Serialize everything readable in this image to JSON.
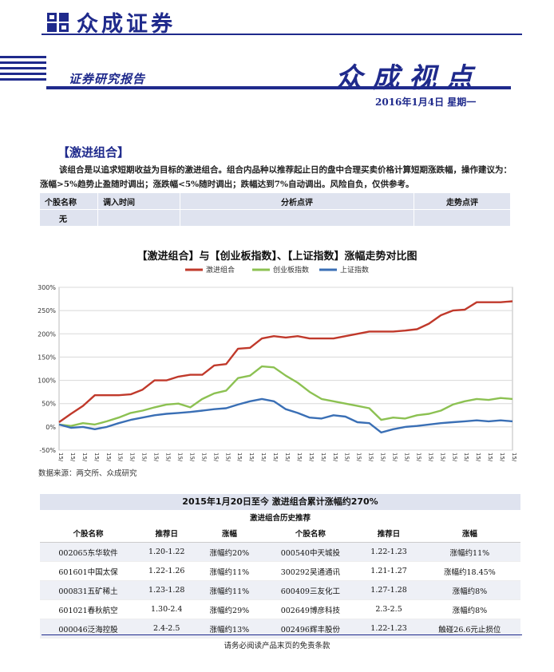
{
  "header": {
    "brand_name": "众成证券",
    "report_label": "证券研究报告",
    "title": "众成视点",
    "date": "2016年1月4日  星期一",
    "brand_color": "#1f2a8c"
  },
  "aggressive_portfolio": {
    "section_title": "【激进组合】",
    "description": "该组合是以追求短期收益为目标的激进组合。组合内品种以推荐起止日的盘中合理买卖价格计算短期涨跌幅，操作建议为：涨幅>5%趋势止盈随时调出；涨跌幅<5%随时调出；跌幅达到7%自动调出。风险自负，仅供参考。",
    "columns": [
      "个股名称",
      "调入时间",
      "分析点评",
      "走势点评"
    ],
    "rows": [
      [
        "无",
        "",
        "",
        ""
      ]
    ]
  },
  "chart_title": "【激进组合】与【创业板指数】、【上证指数】涨幅走势对比图",
  "chart_data": {
    "type": "line",
    "series": [
      {
        "name": "激进组合",
        "color": "#c0392b",
        "values": [
          10,
          28,
          45,
          68,
          68,
          68,
          70,
          80,
          100,
          100,
          108,
          112,
          112,
          132,
          135,
          168,
          170,
          190,
          195,
          192,
          195,
          190,
          190,
          190,
          195,
          200,
          205,
          205,
          205,
          207,
          210,
          222,
          240,
          250,
          252,
          268,
          268,
          268,
          270
        ]
      },
      {
        "name": "创业板指数",
        "color": "#8cc152",
        "values": [
          5,
          2,
          8,
          5,
          12,
          20,
          30,
          35,
          42,
          48,
          50,
          42,
          60,
          72,
          78,
          105,
          110,
          130,
          128,
          110,
          95,
          75,
          60,
          55,
          50,
          45,
          40,
          15,
          20,
          18,
          25,
          28,
          35,
          48,
          55,
          60,
          58,
          62,
          60
        ]
      },
      {
        "name": "上证指数",
        "color": "#3a6fb5",
        "values": [
          5,
          -2,
          0,
          -5,
          0,
          8,
          15,
          20,
          25,
          28,
          30,
          32,
          35,
          38,
          40,
          48,
          55,
          60,
          55,
          38,
          30,
          20,
          18,
          25,
          22,
          10,
          8,
          -12,
          -5,
          0,
          2,
          5,
          8,
          10,
          12,
          14,
          12,
          14,
          12
        ]
      }
    ],
    "x": [
      "15/1/20",
      "15/1/27",
      "15/2/3",
      "15/2/10",
      "15/2/17",
      "15/2/24",
      "15/3/3",
      "15/3/10",
      "15/3/17",
      "15/3/24",
      "15/3/31",
      "15/4/7",
      "15/4/14",
      "15/4/21",
      "15/4/28",
      "15/5/5",
      "15/5/12",
      "15/5/19",
      "15/5/26",
      "15/6/2",
      "15/6/9",
      "15/6/16",
      "15/6/23",
      "15/6/30",
      "15/7/7",
      "15/7/14",
      "15/7/21",
      "15/7/28",
      "15/8/4",
      "15/8/11",
      "15/8/18",
      "15/8/25",
      "15/9/1",
      "15/9/8",
      "15/9/15",
      "15/9/22",
      "15/9/29",
      "15/10/6",
      "15/10/13"
    ],
    "ylim": [
      -50,
      300
    ],
    "yticks": [
      "-50%",
      "0%",
      "50%",
      "100%",
      "150%",
      "200%",
      "250%",
      "300%"
    ],
    "legend_position": "top-center",
    "grid": true
  },
  "source": "数据来源：两交所、众成研究",
  "performance": {
    "summary": "2015年1月20日至今    激进组合累计涨幅约270%",
    "history_label": "激进组合历史推荐",
    "columns": [
      "个股名称",
      "推荐日",
      "涨幅",
      "个股名称",
      "推荐日",
      "涨幅"
    ],
    "rows": [
      [
        "002065东华软件",
        "1.20-1.22",
        "涨幅约20%",
        "000540中天城投",
        "1.22-1.23",
        "涨幅约11%"
      ],
      [
        "601601中国太保",
        "1.22-1.26",
        "涨幅约11%",
        "300292吴通通讯",
        "1.21-1.27",
        "涨幅约18.45%"
      ],
      [
        "000831五矿稀土",
        "1.23-1.28",
        "涨幅约11%",
        "600409三友化工",
        "1.27-1.28",
        "涨幅约8%"
      ],
      [
        "601021春秋航空",
        "1.30-2.4",
        "涨幅约29%",
        "002649博彦科技",
        "2.3-2.5",
        "涨幅约8%"
      ],
      [
        "000046泛海控股",
        "2.4-2.5",
        "涨幅约13%",
        "002496辉丰股份",
        "1.22-1.23",
        "触碰26.6元止损位"
      ]
    ]
  },
  "footer": "请务必阅读产品末页的免责条款"
}
